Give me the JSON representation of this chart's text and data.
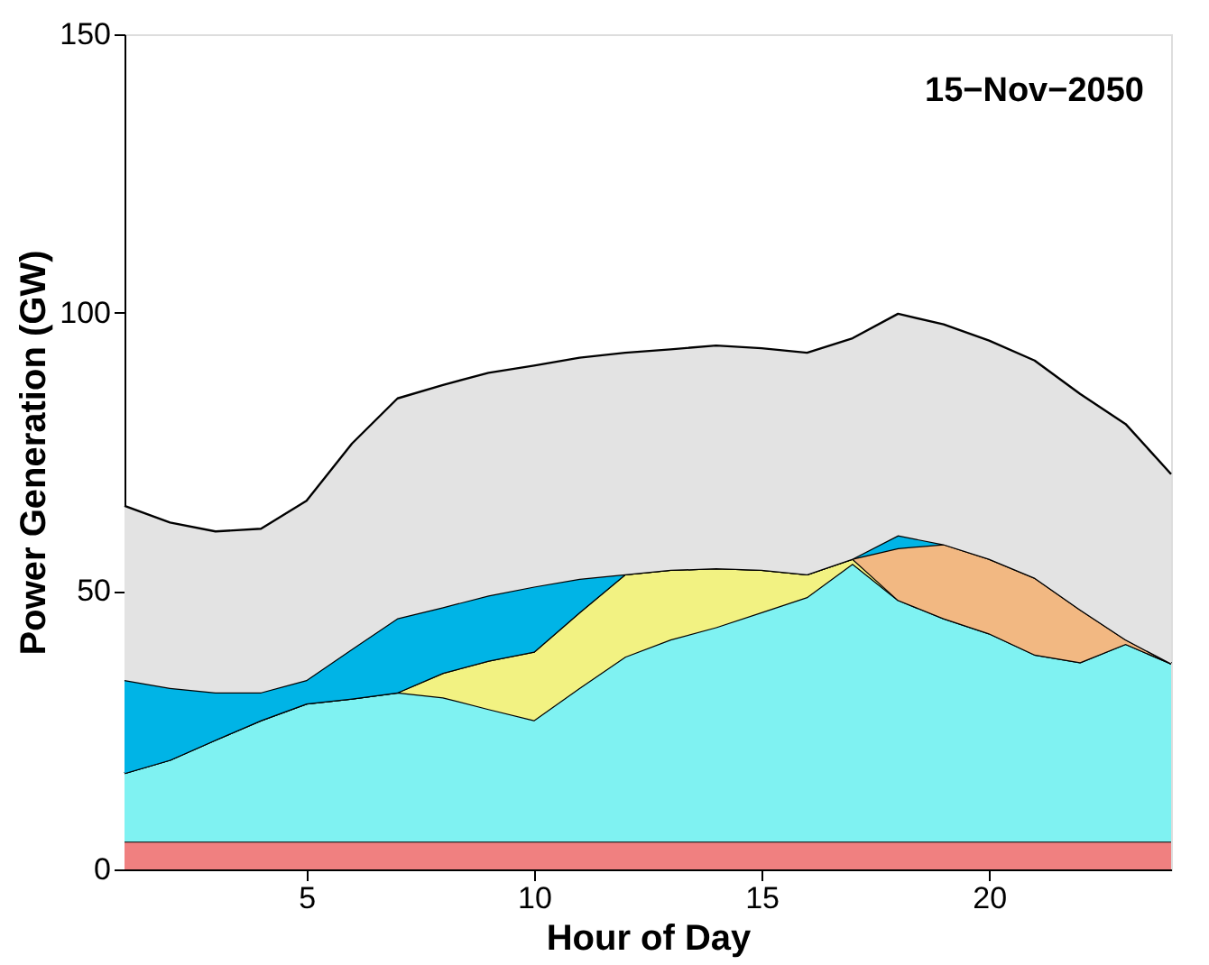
{
  "chart_data": {
    "type": "area",
    "stacked": true,
    "xlabel": "Hour of Day",
    "ylabel": "Power Generation (GW)",
    "annotations": [
      "15−Nov−2050"
    ],
    "x": [
      1,
      2,
      3,
      4,
      5,
      6,
      7,
      8,
      9,
      10,
      11,
      12,
      13,
      14,
      15,
      16,
      17,
      18,
      19,
      20,
      21,
      22,
      23,
      24
    ],
    "xlim": [
      1,
      24
    ],
    "xticks": [
      5,
      10,
      15,
      20
    ],
    "ylim": [
      0,
      150
    ],
    "yticks": [
      0,
      50,
      100,
      150
    ],
    "grid": false,
    "legend": false,
    "series": [
      {
        "color": "#f08080",
        "values": [
          5,
          5,
          5,
          5,
          5,
          5,
          5,
          5,
          5,
          5,
          5,
          5,
          5,
          5,
          5,
          5,
          5,
          5,
          5,
          5,
          5,
          5,
          5,
          5
        ]
      },
      {
        "color": "#7ff2f2",
        "values": [
          12.3,
          14.7,
          18.3,
          21.8,
          24.8,
          25.7,
          26.8,
          25.9,
          23.8,
          21.8,
          27.6,
          33.2,
          36.3,
          38.5,
          41.2,
          43.9,
          49.9,
          43.4,
          40.1,
          37.4,
          33.6,
          32.2,
          35.5,
          32
        ]
      },
      {
        "color": "#f2f282",
        "values": [
          0,
          0,
          0,
          0,
          0,
          0,
          0,
          4.4,
          8.7,
          12.3,
          13.6,
          14.8,
          12.5,
          10.6,
          7.6,
          4.1,
          0.9,
          0,
          0,
          0,
          0,
          0,
          0,
          0
        ]
      },
      {
        "color": "#f2b882",
        "values": [
          0,
          0,
          0,
          0,
          0,
          0,
          0,
          0,
          0,
          0,
          0,
          0,
          0,
          0,
          0,
          0,
          0,
          9.3,
          13.3,
          13.4,
          13.8,
          9.5,
          0.8,
          0
        ]
      },
      {
        "color": "#00b4e6",
        "values": [
          16.7,
          12.9,
          8.5,
          5.0,
          4.2,
          8.9,
          13.3,
          11.8,
          11.7,
          11.7,
          6.0,
          0,
          0,
          0,
          0,
          0,
          0,
          2.3,
          0,
          0,
          0,
          0,
          0,
          0
        ]
      },
      {
        "color": "#e3e3e3",
        "values": [
          31.3,
          29.7,
          28.9,
          29.4,
          32.2,
          36.9,
          39.5,
          39.9,
          40,
          39.7,
          39.7,
          39.8,
          39.6,
          40,
          39.8,
          39.8,
          39.6,
          39.8,
          39.5,
          39.2,
          39,
          38.7,
          38.7,
          34
        ]
      }
    ]
  }
}
